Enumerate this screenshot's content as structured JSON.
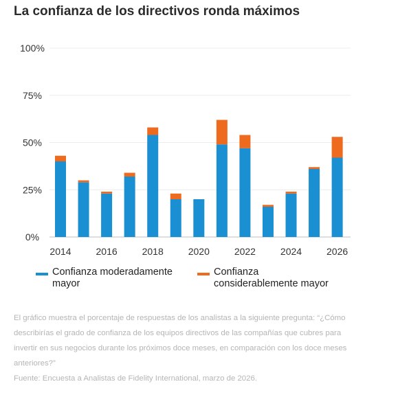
{
  "title": "La confianza de los directivos ronda máximos",
  "chart_data": {
    "type": "bar",
    "stacked": true,
    "categories": [
      "2014",
      "2015",
      "2016",
      "2017",
      "2018",
      "2019",
      "2020",
      "2021",
      "2022",
      "2023",
      "2024",
      "2025",
      "2026"
    ],
    "x_tick_labels": [
      "2014",
      "2016",
      "2018",
      "2020",
      "2022",
      "2024",
      "2026"
    ],
    "series": [
      {
        "name": "Confianza moderadamente mayor",
        "color": "#1a8fd1",
        "values": [
          40,
          29,
          23,
          32,
          54,
          20,
          20,
          49,
          47,
          16,
          23,
          36,
          42
        ]
      },
      {
        "name": "Confianza considerablemente mayor",
        "color": "#ee6a1f",
        "values": [
          3,
          1,
          1,
          2,
          4,
          3,
          0,
          13,
          7,
          1,
          1,
          1,
          11
        ]
      }
    ],
    "ylim": [
      0,
      100
    ],
    "y_ticks": [
      0,
      25,
      50,
      75,
      100
    ],
    "y_tick_labels": [
      "0%",
      "25%",
      "50%",
      "75%",
      "100%"
    ],
    "grid": true,
    "legend_position": "bottom"
  },
  "legend": {
    "moderate": "Confianza moderadamente\nmayor",
    "considerable": "Confianza\nconsiderablemente mayor"
  },
  "notes": {
    "description": "El gráfico muestra el porcentaje de respuestas de los analistas a la siguiente pregunta: “¿Cómo describirías el grado de confianza de los equipos directivos de las compañías que cubres para invertir en sus negocios durante los próximos doce meses, en comparación con los doce meses anteriores?”",
    "source": "Fuente: Encuesta a Analistas de Fidelity International, marzo de 2026."
  }
}
